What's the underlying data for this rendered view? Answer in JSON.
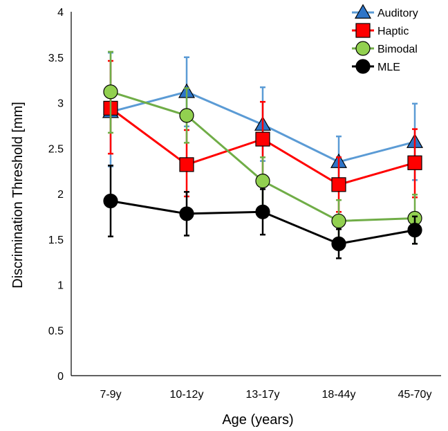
{
  "chart_data": {
    "type": "line",
    "categories": [
      "7-9y",
      "10-12y",
      "13-17y",
      "18-44y",
      "45-70y"
    ],
    "xlabel": "Age (years)",
    "ylabel": "Discrimination Threshold [mm]",
    "ylim": [
      0,
      4
    ],
    "y_ticks": [
      "0",
      "0.5",
      "1",
      "1.5",
      "2",
      "2.5",
      "3",
      "3.5",
      "4"
    ],
    "grid": false,
    "legend_position": "top-right",
    "series": [
      {
        "name": "Auditory",
        "marker": "triangle",
        "color": "#5b9bd5",
        "marker_fill": "#2e75c8",
        "values": [
          2.9,
          3.12,
          2.76,
          2.35,
          2.57
        ],
        "err_low": [
          0.6,
          0.38,
          0.4,
          0.25,
          0.42
        ],
        "err_high": [
          0.65,
          0.38,
          0.41,
          0.28,
          0.42
        ]
      },
      {
        "name": "Haptic",
        "marker": "square",
        "color": "#ff0000",
        "marker_fill": "#ff0000",
        "values": [
          2.94,
          2.32,
          2.6,
          2.1,
          2.34
        ],
        "err_low": [
          0.5,
          0.35,
          0.42,
          0.3,
          0.38
        ],
        "err_high": [
          0.52,
          0.38,
          0.41,
          0.3,
          0.37
        ]
      },
      {
        "name": "Bimodal",
        "marker": "circle",
        "color": "#70ad47",
        "marker_fill": "#92d050",
        "values": [
          3.12,
          2.86,
          2.14,
          1.7,
          1.73
        ],
        "err_low": [
          0.45,
          0.3,
          0.3,
          0.22,
          0.28
        ],
        "err_high": [
          0.44,
          0.3,
          0.26,
          0.23,
          0.26
        ]
      },
      {
        "name": "MLE",
        "marker": "circle",
        "color": "#000000",
        "marker_fill": "#000000",
        "values": [
          1.92,
          1.78,
          1.8,
          1.45,
          1.6
        ],
        "err_low": [
          0.39,
          0.24,
          0.25,
          0.16,
          0.15
        ],
        "err_high": [
          0.39,
          0.24,
          0.25,
          0.16,
          0.15
        ]
      }
    ]
  }
}
